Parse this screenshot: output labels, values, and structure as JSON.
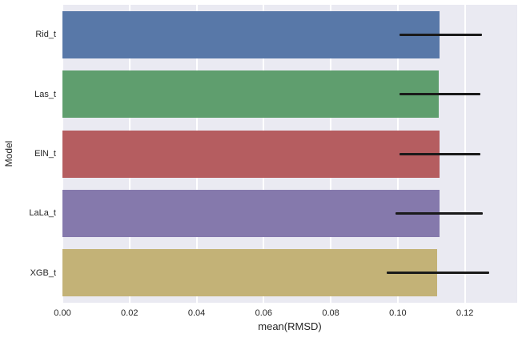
{
  "chart_data": {
    "type": "bar",
    "orientation": "horizontal",
    "title": "",
    "xlabel": "mean(RMSD)",
    "ylabel": "Model",
    "categories": [
      "Rid_t",
      "Las_t",
      "ElN_t",
      "LaLa_t",
      "XGB_t"
    ],
    "values": [
      0.1125,
      0.1123,
      0.1125,
      0.1124,
      0.1118
    ],
    "error_low": [
      0.1004,
      0.1005,
      0.1006,
      0.0992,
      0.0966
    ],
    "error_high": [
      0.1251,
      0.1247,
      0.1247,
      0.1253,
      0.1272
    ],
    "bar_colors": [
      "#5878a8",
      "#5f9e6e",
      "#b55d60",
      "#8579ac",
      "#c3b277"
    ],
    "xlim": [
      0,
      0.1356
    ],
    "xticks": [
      0.0,
      0.02,
      0.04,
      0.06,
      0.08,
      0.1,
      0.12
    ],
    "xtick_labels": [
      "0.00",
      "0.02",
      "0.04",
      "0.06",
      "0.08",
      "0.10",
      "0.12"
    ],
    "grid": true,
    "legend": "none",
    "plot_bg": "#eaeaf2",
    "grid_color": "#ffffff",
    "errorbar_color": "#1a1a1a"
  }
}
